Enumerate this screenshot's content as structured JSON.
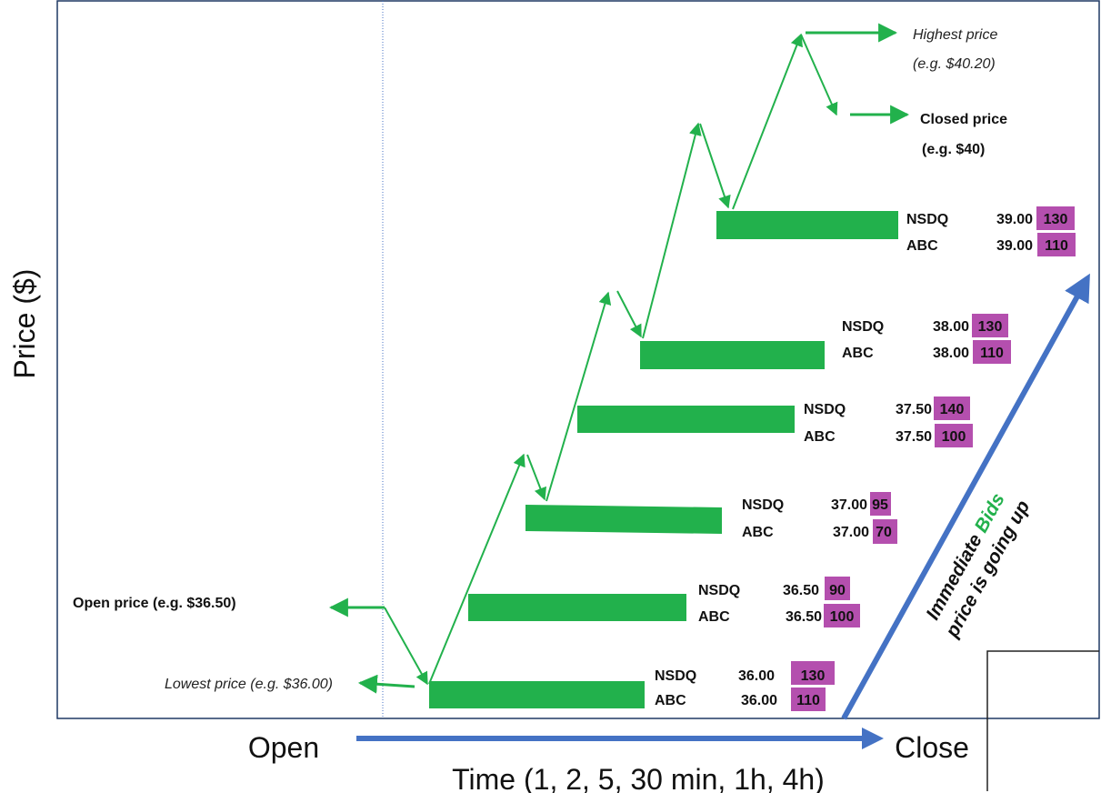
{
  "axes": {
    "y_label": "Price ($)",
    "x_label": "Time (1, 2, 5, 30 min, 1h, 4h)",
    "x_start": "Open",
    "x_end": "Close"
  },
  "annotations": {
    "open_price": "Open price (e.g. $36.50)",
    "lowest_price": "Lowest price (e.g. $36.00)",
    "highest_price_line1": "Highest price",
    "highest_price_line2": "(e.g. $40.20)",
    "closed_price_line1": "Closed price",
    "closed_price_line2": "(e.g. $40)"
  },
  "trend_label": {
    "line1_prefix": "Immediate ",
    "line1_highlight": "Bids",
    "line2": "price is going up"
  },
  "bid_levels": [
    {
      "rows": [
        {
          "exchange": "NSDQ",
          "price": "36.00",
          "size": "130"
        },
        {
          "exchange": "ABC",
          "price": "36.00",
          "size": "110"
        }
      ]
    },
    {
      "rows": [
        {
          "exchange": "NSDQ",
          "price": "36.50",
          "size": "90"
        },
        {
          "exchange": "ABC",
          "price": "36.50",
          "size": "100"
        }
      ]
    },
    {
      "rows": [
        {
          "exchange": "NSDQ",
          "price": "37.00",
          "size": "95"
        },
        {
          "exchange": "ABC",
          "price": "37.00",
          "size": "70"
        }
      ]
    },
    {
      "rows": [
        {
          "exchange": "NSDQ",
          "price": "37.50",
          "size": "140"
        },
        {
          "exchange": "ABC",
          "price": "37.50",
          "size": "100"
        }
      ]
    },
    {
      "rows": [
        {
          "exchange": "NSDQ",
          "price": "38.00",
          "size": "130"
        },
        {
          "exchange": "ABC",
          "price": "38.00",
          "size": "110"
        }
      ]
    },
    {
      "rows": [
        {
          "exchange": "NSDQ",
          "price": "39.00",
          "size": "130"
        },
        {
          "exchange": "ABC",
          "price": "39.00",
          "size": "110"
        }
      ]
    }
  ],
  "colors": {
    "green": "#22b14c",
    "blue": "#4472c4",
    "magenta": "#b44fae",
    "frame": "#1f3864"
  }
}
